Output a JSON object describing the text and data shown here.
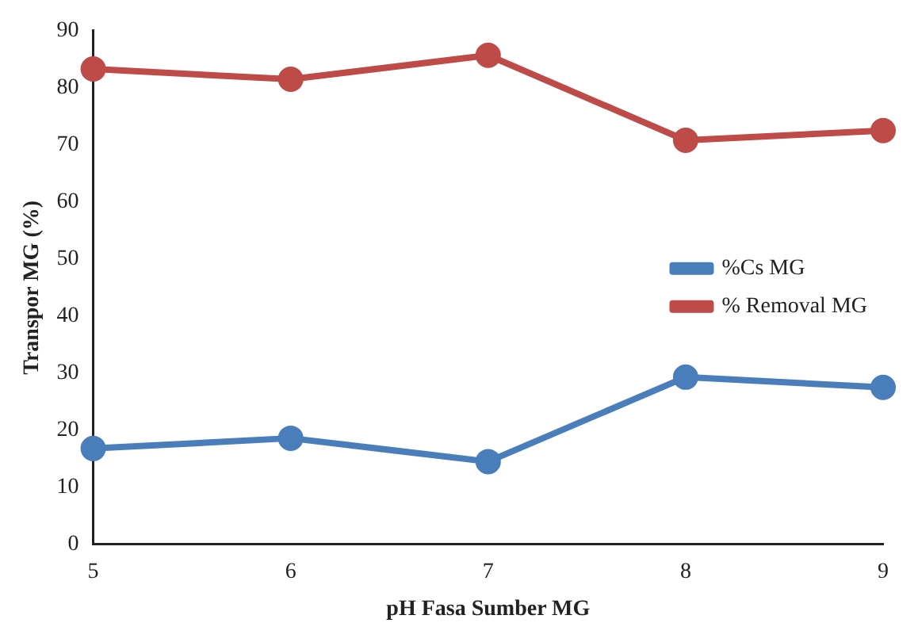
{
  "chart_data": {
    "type": "line",
    "xlabel": "pH Fasa Sumber MG",
    "ylabel": "Transpor MG (%)",
    "x": [
      5,
      6,
      7,
      8,
      9
    ],
    "series": [
      {
        "name": "%Cs MG",
        "color": "#4a7ebb",
        "values": [
          16.8,
          18.6,
          14.5,
          29.3,
          27.5
        ]
      },
      {
        "name": "% Removal MG",
        "color": "#be4b48",
        "values": [
          83.3,
          81.5,
          85.7,
          70.8,
          72.5
        ]
      }
    ],
    "xlim": [
      5,
      9
    ],
    "xticks": [
      5,
      6,
      7,
      8,
      9
    ],
    "ylim": [
      0,
      90
    ],
    "yticks": [
      0,
      10,
      20,
      30,
      40,
      50,
      60,
      70,
      80,
      90
    ],
    "grid": false,
    "legend": "right",
    "marker": "circle",
    "line_style": "solid"
  }
}
